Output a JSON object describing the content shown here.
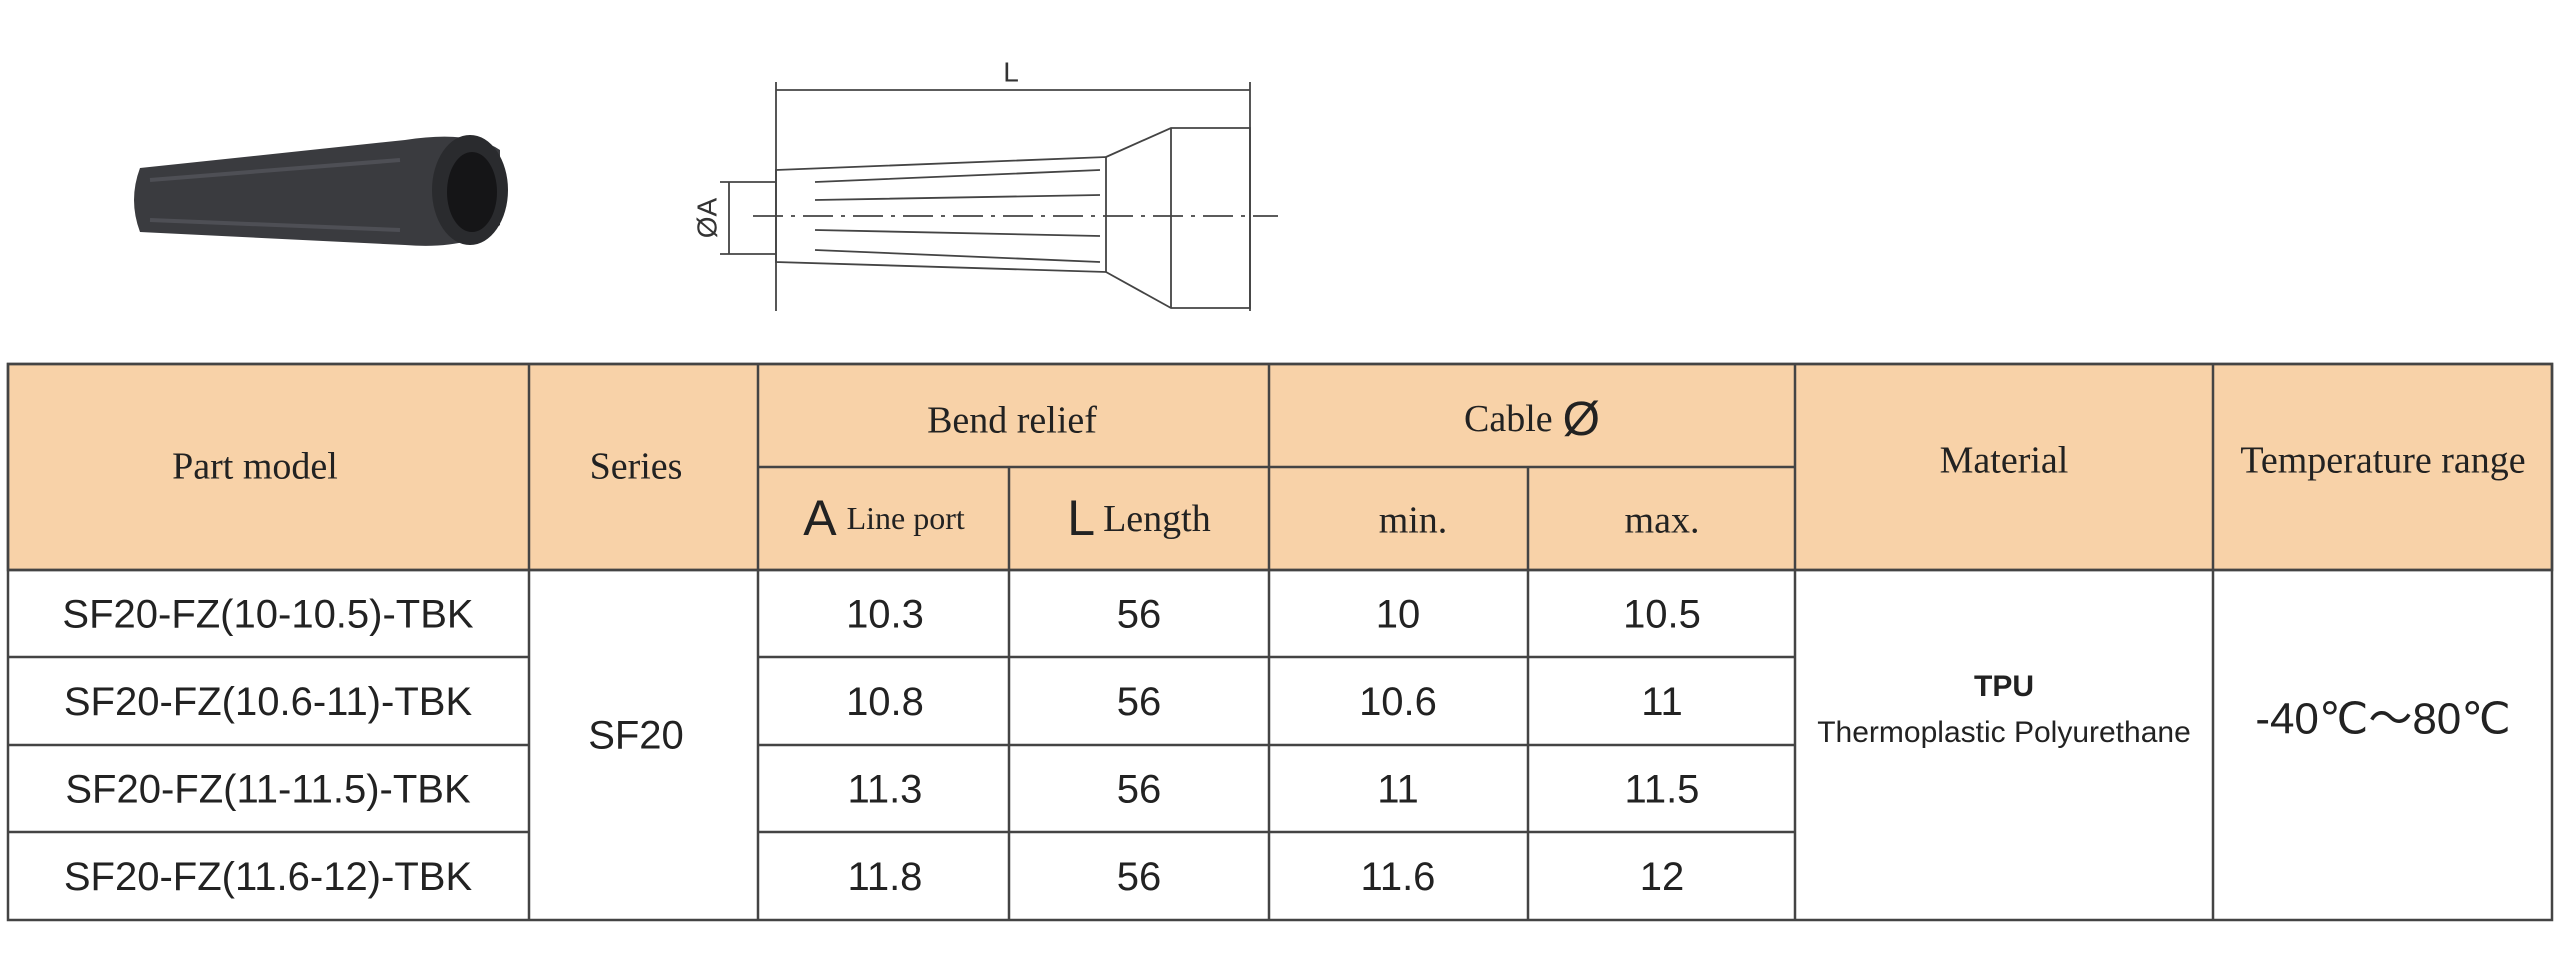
{
  "drawing": {
    "length_label": "L",
    "diameter_label": "ØA"
  },
  "table": {
    "headers": {
      "part_model": "Part model",
      "series": "Series",
      "bend_relief": "Bend relief",
      "a_symbol": "A",
      "a_label": "Line port",
      "l_symbol": "L",
      "l_label": "Length",
      "cable": "Cable",
      "cable_symbol": "Ø",
      "min": "min.",
      "max": "max.",
      "material": "Material",
      "temperature": "Temperature range"
    },
    "rows": [
      [
        "SF20-FZ(10-10.5)-TBK",
        10.3,
        56,
        10,
        10.5
      ],
      [
        "SF20-FZ(10.6-11)-TBK",
        10.8,
        56,
        10.6,
        11
      ],
      [
        "SF20-FZ(11-11.5)-TBK",
        11.3,
        56,
        11,
        11.5
      ],
      [
        "SF20-FZ(11.6-12)-TBK",
        11.8,
        56,
        11.6,
        12
      ]
    ],
    "series": "SF20",
    "material": {
      "code": "TPU",
      "name": "Thermoplastic Polyurethane"
    },
    "temperature": "-40℃～80℃"
  }
}
